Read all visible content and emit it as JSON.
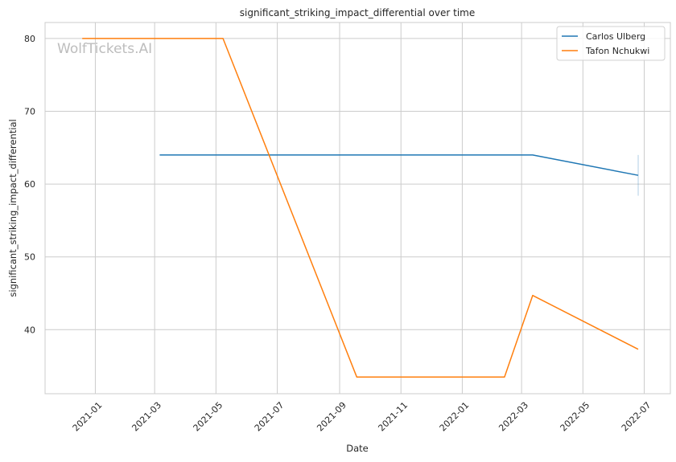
{
  "chart_data": {
    "type": "line",
    "title": "significant_striking_impact_differential over time",
    "xlabel": "Date",
    "ylabel": "significant_striking_impact_differential",
    "watermark": "WolfTickets.AI",
    "x_type": "date",
    "xlim": [
      "2020-11-12",
      "2022-07-27"
    ],
    "ylim": [
      31.2,
      82.2
    ],
    "x_ticks": [
      "2021-01-01",
      "2021-03-01",
      "2021-05-01",
      "2021-07-01",
      "2021-09-01",
      "2021-11-01",
      "2022-01-01",
      "2022-03-01",
      "2022-05-01",
      "2022-07-01"
    ],
    "x_tick_labels": [
      "2021-01",
      "2021-03",
      "2021-05",
      "2021-07",
      "2021-09",
      "2021-11",
      "2022-01",
      "2022-03",
      "2022-05",
      "2022-07"
    ],
    "y_ticks": [
      40,
      50,
      60,
      70,
      80
    ],
    "y_tick_labels": [
      "40",
      "50",
      "60",
      "70",
      "80"
    ],
    "grid": true,
    "legend_position": "top-right",
    "series": [
      {
        "name": "Carlos Ulberg",
        "color": "#1f77b4",
        "points": [
          {
            "x": "2021-03-06",
            "y": 64.0
          },
          {
            "x": "2022-03-12",
            "y": 64.0
          },
          {
            "x": "2022-06-25",
            "y": 61.2
          }
        ],
        "error_bar": {
          "x": "2022-06-25",
          "low": 58.4,
          "high": 64.0
        }
      },
      {
        "name": "Tafon Nchukwi",
        "color": "#ff7f0e",
        "points": [
          {
            "x": "2020-12-19",
            "y": 80.0
          },
          {
            "x": "2021-05-08",
            "y": 80.0
          },
          {
            "x": "2021-09-18",
            "y": 33.5
          },
          {
            "x": "2022-02-12",
            "y": 33.5
          },
          {
            "x": "2022-03-12",
            "y": 44.7
          },
          {
            "x": "2022-06-25",
            "y": 37.3
          }
        ]
      }
    ]
  }
}
